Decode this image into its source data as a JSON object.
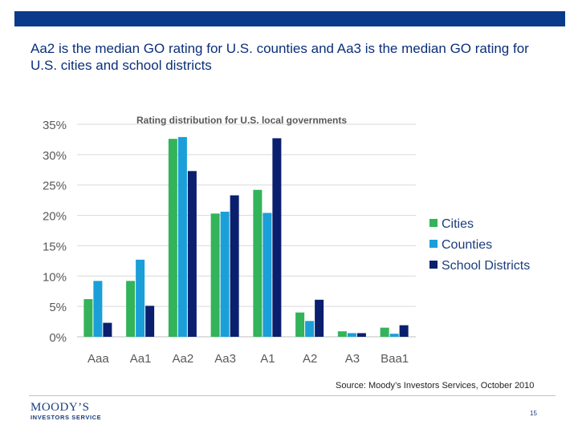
{
  "slide": {
    "headline": "Aa2 is the median GO rating for U.S. counties and Aa3 is the median GO rating for U.S. cities and school districts",
    "source": "Source: Moody’s Investors Services, October 2010",
    "page_number": "15",
    "logo_main": "MOODY’S",
    "logo_sub": "INVESTORS SERVICE",
    "brand_color": "#0a3a8a"
  },
  "chart_data": {
    "type": "bar",
    "title": "Rating distribution for U.S. local governments",
    "categories": [
      "Aaa",
      "Aa1",
      "Aa2",
      "Aa3",
      "A1",
      "A2",
      "A3",
      "Baa1"
    ],
    "series": [
      {
        "name": "Cities",
        "color": "#33b35a",
        "values": [
          6.2,
          9.2,
          32.6,
          20.3,
          24.2,
          4.0,
          0.9,
          1.5
        ]
      },
      {
        "name": "Counties",
        "color": "#1a9fd9",
        "values": [
          9.2,
          12.7,
          32.9,
          20.6,
          20.4,
          2.6,
          0.6,
          0.5
        ]
      },
      {
        "name": "School Districts",
        "color": "#0a1f6e",
        "values": [
          2.3,
          5.1,
          27.3,
          23.3,
          32.7,
          6.1,
          0.6,
          1.9
        ]
      }
    ],
    "y_ticks": [
      "0%",
      "5%",
      "10%",
      "15%",
      "20%",
      "25%",
      "30%",
      "35%"
    ],
    "ylim": [
      0,
      35
    ],
    "grid": true,
    "legend_position": "right"
  }
}
